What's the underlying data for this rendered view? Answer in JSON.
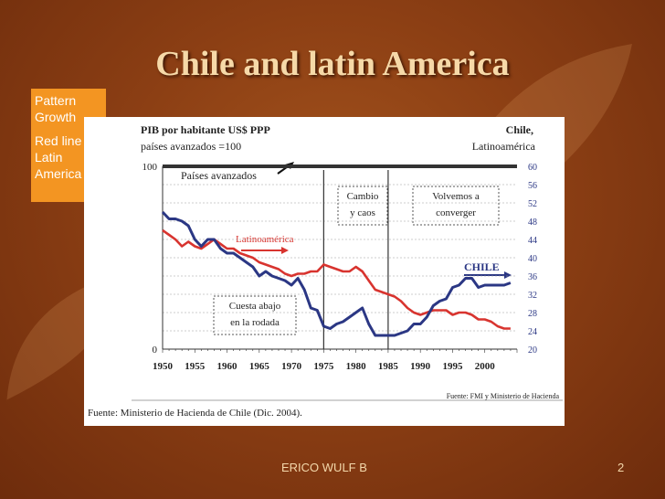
{
  "slide": {
    "title": "Chile and latin America",
    "note_line1": "Pattern Growth",
    "note_line2": "Red line : Latin America",
    "footer_author": "ERICO WULF B",
    "slide_number": "2"
  },
  "chart_data": {
    "type": "line",
    "title_left_1": "PIB por habitante US$ PPP",
    "title_left_2": "países avanzados =100",
    "title_right_1": "Chile,",
    "title_right_2": "Latinoamérica",
    "left_axis_ticks": [
      "100",
      "0"
    ],
    "right_axis_ticks": [
      "60",
      "56",
      "52",
      "48",
      "44",
      "40",
      "36",
      "32",
      "28",
      "24",
      "20"
    ],
    "right_ylim": [
      20,
      60
    ],
    "x_ticks": [
      "1950",
      "1955",
      "1960",
      "1965",
      "1970",
      "1975",
      "1980",
      "1985",
      "1990",
      "1995",
      "2000"
    ],
    "xlim": [
      1950,
      2005
    ],
    "annotations": {
      "paises": "Países avanzados",
      "latam": "Latinoamérica",
      "chile": "CHILE",
      "cambio_1": "Cambio",
      "cambio_2": "y caos",
      "volvemos_1": "Volvemos a",
      "volvemos_2": "converger",
      "cuesta_1": "Cuesta abajo",
      "cuesta_2": "en la rodada"
    },
    "source_inner": "Fuente: FMI y Ministerio de Hacienda",
    "source_outer": "Fuente: Ministerio de Hacienda de Chile (Dic. 2004).",
    "reference_level": 100,
    "series": [
      {
        "name": "Latinoamérica",
        "color": "#d8342f",
        "points": [
          [
            1950,
            46
          ],
          [
            1951,
            45
          ],
          [
            1952,
            44
          ],
          [
            1953,
            42.5
          ],
          [
            1954,
            43.5
          ],
          [
            1955,
            42.5
          ],
          [
            1956,
            42
          ],
          [
            1957,
            43
          ],
          [
            1958,
            44
          ],
          [
            1959,
            43
          ],
          [
            1960,
            42
          ],
          [
            1961,
            42
          ],
          [
            1962,
            41
          ],
          [
            1963,
            40.5
          ],
          [
            1964,
            40
          ],
          [
            1965,
            39
          ],
          [
            1966,
            38.5
          ],
          [
            1967,
            38
          ],
          [
            1968,
            37.5
          ],
          [
            1969,
            36.5
          ],
          [
            1970,
            36
          ],
          [
            1971,
            36.5
          ],
          [
            1972,
            36.5
          ],
          [
            1973,
            37
          ],
          [
            1974,
            37
          ],
          [
            1975,
            38.5
          ],
          [
            1976,
            38
          ],
          [
            1977,
            37.5
          ],
          [
            1978,
            37
          ],
          [
            1979,
            37
          ],
          [
            1980,
            38
          ],
          [
            1981,
            37
          ],
          [
            1982,
            35
          ],
          [
            1983,
            33
          ],
          [
            1984,
            32.5
          ],
          [
            1985,
            32
          ],
          [
            1986,
            31.5
          ],
          [
            1987,
            30.5
          ],
          [
            1988,
            29
          ],
          [
            1989,
            28
          ],
          [
            1990,
            27.5
          ],
          [
            1991,
            28
          ],
          [
            1992,
            28.5
          ],
          [
            1993,
            28.5
          ],
          [
            1994,
            28.5
          ],
          [
            1995,
            27.5
          ],
          [
            1996,
            28
          ],
          [
            1997,
            28
          ],
          [
            1998,
            27.5
          ],
          [
            1999,
            26.5
          ],
          [
            2000,
            26.5
          ],
          [
            2001,
            26
          ],
          [
            2002,
            25
          ],
          [
            2003,
            24.5
          ],
          [
            2004,
            24.5
          ]
        ]
      },
      {
        "name": "CHILE",
        "color": "#2b3784",
        "points": [
          [
            1950,
            50
          ],
          [
            1951,
            48.5
          ],
          [
            1952,
            48.5
          ],
          [
            1953,
            48
          ],
          [
            1954,
            47
          ],
          [
            1955,
            44
          ],
          [
            1956,
            42.5
          ],
          [
            1957,
            44
          ],
          [
            1958,
            44
          ],
          [
            1959,
            42
          ],
          [
            1960,
            41
          ],
          [
            1961,
            41
          ],
          [
            1962,
            40
          ],
          [
            1963,
            39
          ],
          [
            1964,
            38
          ],
          [
            1965,
            36
          ],
          [
            1966,
            37
          ],
          [
            1967,
            36
          ],
          [
            1968,
            35.5
          ],
          [
            1969,
            35
          ],
          [
            1970,
            34
          ],
          [
            1971,
            35.5
          ],
          [
            1972,
            33
          ],
          [
            1973,
            29
          ],
          [
            1974,
            28.5
          ],
          [
            1975,
            25
          ],
          [
            1976,
            24.5
          ],
          [
            1977,
            25.5
          ],
          [
            1978,
            26
          ],
          [
            1979,
            27
          ],
          [
            1980,
            28
          ],
          [
            1981,
            29
          ],
          [
            1982,
            25.5
          ],
          [
            1983,
            23
          ],
          [
            1984,
            23
          ],
          [
            1985,
            23
          ],
          [
            1986,
            23
          ],
          [
            1987,
            23.5
          ],
          [
            1988,
            24
          ],
          [
            1989,
            25.5
          ],
          [
            1990,
            25.5
          ],
          [
            1991,
            27
          ],
          [
            1992,
            29.5
          ],
          [
            1993,
            30.5
          ],
          [
            1994,
            31
          ],
          [
            1995,
            33.5
          ],
          [
            1996,
            34
          ],
          [
            1997,
            35.5
          ],
          [
            1998,
            35.5
          ],
          [
            1999,
            33.5
          ],
          [
            2000,
            34
          ],
          [
            2001,
            34
          ],
          [
            2002,
            34
          ],
          [
            2003,
            34
          ],
          [
            2004,
            34.5
          ]
        ]
      }
    ]
  }
}
